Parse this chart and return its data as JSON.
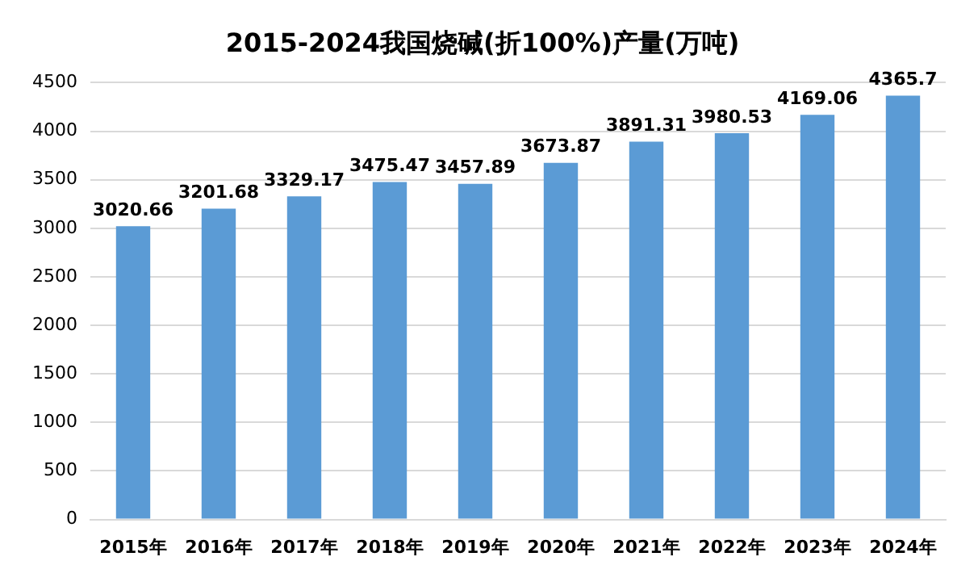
{
  "chart_data": {
    "type": "bar",
    "title": "2015-2024我国烧碱(折100%)产量(万吨)",
    "categories": [
      "2015年",
      "2016年",
      "2017年",
      "2018年",
      "2019年",
      "2020年",
      "2021年",
      "2022年",
      "2023年",
      "2024年"
    ],
    "values": [
      3020.66,
      3201.68,
      3329.17,
      3475.47,
      3457.89,
      3673.87,
      3891.31,
      3980.53,
      4169.06,
      4365.7
    ],
    "color": "#5b9bd5",
    "ylim": [
      0,
      4500
    ],
    "yticks": [
      0,
      500,
      1000,
      1500,
      2000,
      2500,
      3000,
      3500,
      4000,
      4500
    ],
    "grid": "y",
    "data_labels": true
  }
}
